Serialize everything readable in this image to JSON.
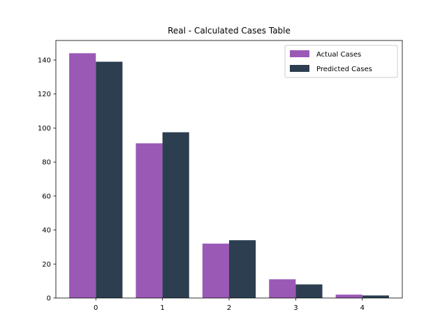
{
  "chart_data": {
    "type": "bar",
    "title": "Real - Calculated Cases Table",
    "xlabel": "",
    "ylabel": "",
    "categories": [
      "0",
      "1",
      "2",
      "3",
      "4"
    ],
    "series": [
      {
        "name": "Actual Cases",
        "values": [
          144,
          91,
          32,
          11,
          2
        ],
        "color": "#9b59b6"
      },
      {
        "name": "Predicted Cases",
        "values": [
          139,
          97.5,
          34,
          8,
          1.5
        ],
        "color": "#2c3e50"
      }
    ],
    "yticks": [
      0,
      20,
      40,
      60,
      80,
      100,
      120,
      140
    ],
    "ylim": [
      0,
      151.5
    ],
    "grid": false,
    "legend_position": "top-right"
  }
}
